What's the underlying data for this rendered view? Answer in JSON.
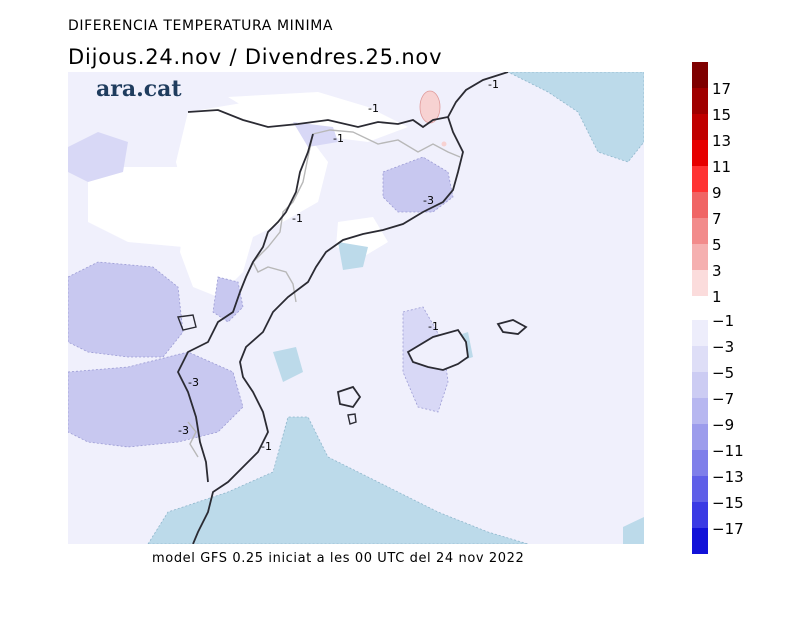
{
  "header": {
    "title": "DIFERENCIA TEMPERATURA MINIMA",
    "subtitle": "Dijous.24.nov / Divendres.25.nov"
  },
  "logo": {
    "text": "ara.cat"
  },
  "footer": {
    "text": "model GFS 0.25 iniciat a les 00 UTC del 24 nov 2022"
  },
  "map": {
    "contour_labels": [
      "-1",
      "-1",
      "-1",
      "-3",
      "-1",
      "-1",
      "-3",
      "-3",
      "-1"
    ]
  },
  "colors": {
    "land_mild": "#f0f0fc",
    "band_minus3": "#d8d8f6",
    "band_minus5": "#c8c8f0",
    "sea_blue": "#bcdaea",
    "warm_pink": "#f7d2d2",
    "coast": "#2b2b33",
    "border": "#b8b8b8"
  },
  "legend": {
    "positive": [
      {
        "label": "17",
        "color": "#7f0000"
      },
      {
        "label": "15",
        "color": "#a00000"
      },
      {
        "label": "13",
        "color": "#c00000"
      },
      {
        "label": "11",
        "color": "#e60000"
      },
      {
        "label": "9",
        "color": "#ff3333"
      },
      {
        "label": "7",
        "color": "#f06565"
      },
      {
        "label": "5",
        "color": "#f28b8b"
      },
      {
        "label": "3",
        "color": "#f5b0b0"
      },
      {
        "label": "1",
        "color": "#fbdcdc"
      }
    ],
    "negative": [
      {
        "label": "−1",
        "color": "#ededfb"
      },
      {
        "label": "−3",
        "color": "#dedef7"
      },
      {
        "label": "−5",
        "color": "#ccccf3"
      },
      {
        "label": "−7",
        "color": "#b7b7f0"
      },
      {
        "label": "−9",
        "color": "#9c9cec"
      },
      {
        "label": "−11",
        "color": "#7f7fea"
      },
      {
        "label": "−13",
        "color": "#5f5fe8"
      },
      {
        "label": "−15",
        "color": "#3a3ae4"
      },
      {
        "label": "−17",
        "color": "#1212d8"
      }
    ]
  }
}
